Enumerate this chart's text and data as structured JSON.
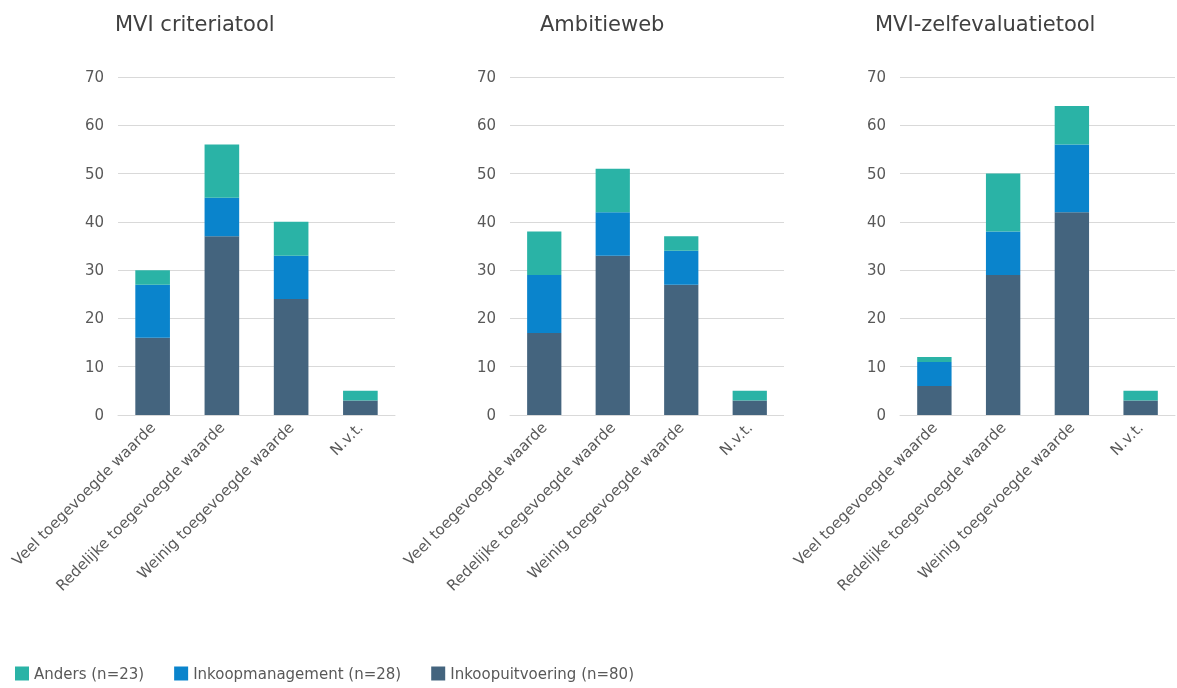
{
  "chart_data": [
    {
      "type": "bar",
      "title": "MVI criteriatool",
      "categories": [
        "Veel toegevoegde waarde",
        "Redelijke toegevoegde waarde",
        "Weinig toegevoegde waarde",
        "N.v.t."
      ],
      "stacked": true,
      "ylim": [
        0,
        70
      ],
      "yticks": [
        0,
        10,
        20,
        30,
        40,
        50,
        60,
        70
      ],
      "grid": "y",
      "legend": "bottom",
      "series": [
        {
          "name": "Inkoopuitvoering (n=80)",
          "color": "#44647e",
          "values": [
            16,
            37,
            24,
            3
          ]
        },
        {
          "name": "Inkoopmanagement (n=28)",
          "color": "#0a84cc",
          "values": [
            11,
            8,
            9,
            0
          ]
        },
        {
          "name": "Anders (n=23)",
          "color": "#2ab3a6",
          "values": [
            3,
            11,
            7,
            2
          ]
        }
      ]
    },
    {
      "type": "bar",
      "title": "Ambitieweb",
      "categories": [
        "Veel toegevoegde waarde",
        "Redelijke toegevoegde waarde",
        "Weinig toegevoegde waarde",
        "N.v.t."
      ],
      "stacked": true,
      "ylim": [
        0,
        70
      ],
      "yticks": [
        0,
        10,
        20,
        30,
        40,
        50,
        60,
        70
      ],
      "grid": "y",
      "series": [
        {
          "color": "#44647e",
          "values": [
            17,
            33,
            27,
            3
          ]
        },
        {
          "color": "#0a84cc",
          "values": [
            12,
            9,
            7,
            0
          ]
        },
        {
          "color": "#2ab3a6",
          "values": [
            9,
            9,
            3,
            2
          ]
        }
      ]
    },
    {
      "type": "bar",
      "title": "MVI-zelfevaluatietool",
      "categories": [
        "Veel toegevoegde waarde",
        "Redelijke toegevoegde waarde",
        "Weinig toegevoegde waarde",
        "N.v.t."
      ],
      "stacked": true,
      "ylim": [
        0,
        70
      ],
      "yticks": [
        0,
        10,
        20,
        30,
        40,
        50,
        60,
        70
      ],
      "grid": "y",
      "series": [
        {
          "color": "#44647e",
          "values": [
            6,
            29,
            42,
            3
          ]
        },
        {
          "color": "#0a84cc",
          "values": [
            5,
            9,
            14,
            0
          ]
        },
        {
          "color": "#2ab3a6",
          "values": [
            1,
            12,
            8,
            2
          ]
        }
      ]
    }
  ]
}
